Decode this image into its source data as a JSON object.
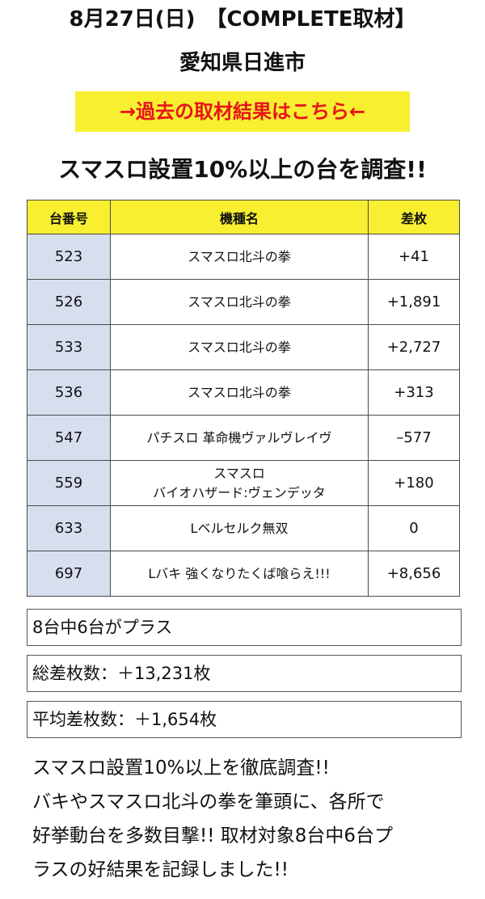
{
  "header": {
    "title": "8月27日(日)　【COMPLETE取材】",
    "location": "愛知県日進市"
  },
  "past_link": {
    "label": "→過去の取材結果はこちら←",
    "background": "#f7ef2f",
    "text_color": "#e8141a"
  },
  "survey_heading": "スマスロ設置10%以上の台を調査!!",
  "table": {
    "headers": [
      "台番号",
      "機種名",
      "差枚"
    ],
    "header_background": "#f7ef2f",
    "number_cell_background": "#d7dfef",
    "rows": [
      {
        "number": "523",
        "machine_line1": "スマスロ北斗の拳",
        "machine_line2": "",
        "diff": "+41"
      },
      {
        "number": "526",
        "machine_line1": "スマスロ北斗の拳",
        "machine_line2": "",
        "diff": "+1,891"
      },
      {
        "number": "533",
        "machine_line1": "スマスロ北斗の拳",
        "machine_line2": "",
        "diff": "+2,727"
      },
      {
        "number": "536",
        "machine_line1": "スマスロ北斗の拳",
        "machine_line2": "",
        "diff": "+313"
      },
      {
        "number": "547",
        "machine_line1": "パチスロ 革命機ヴァルヴレイヴ",
        "machine_line2": "",
        "diff": "–577"
      },
      {
        "number": "559",
        "machine_line1": "スマスロ",
        "machine_line2": "バイオハザード:ヴェンデッタ",
        "diff": "+180"
      },
      {
        "number": "633",
        "machine_line1": "Lベルセルク無双",
        "machine_line2": "",
        "diff": "0"
      },
      {
        "number": "697",
        "machine_line1": "Lバキ 強くなりたくば喰らえ!!!",
        "machine_line2": "",
        "diff": "+8,656"
      }
    ]
  },
  "summary": {
    "plus_count": "8台中6台がプラス",
    "total": "総差枚数：＋13,231枚",
    "average": "平均差枚数：＋1,654枚"
  },
  "closing": [
    "スマスロ設置10%以上を徹底調査!!",
    "バキやスマスロ北斗の拳を筆頭に、各所で",
    "好挙動台を多数目撃!! 取材対象8台中6台プ",
    "ラスの好結果を記録しました!!"
  ]
}
